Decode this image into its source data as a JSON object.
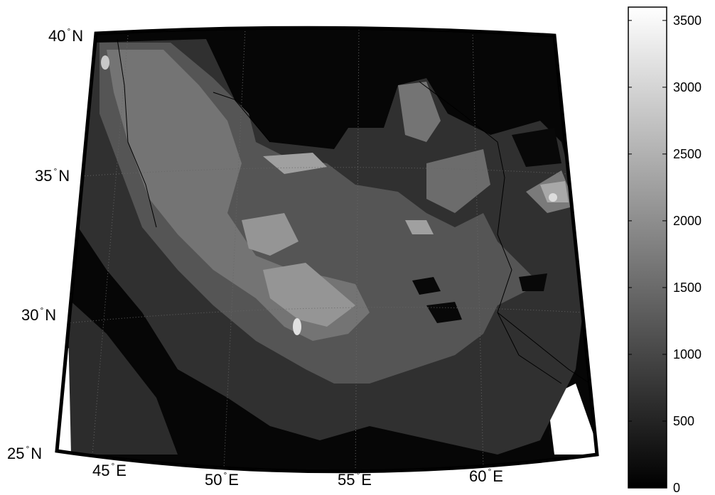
{
  "map": {
    "lat_labels": [
      {
        "num": "40",
        "hemi": "N"
      },
      {
        "num": "35",
        "hemi": "N"
      },
      {
        "num": "30",
        "hemi": "N"
      },
      {
        "num": "25",
        "hemi": "N"
      }
    ],
    "lon_labels": [
      {
        "num": "45",
        "hemi": "E"
      },
      {
        "num": "50",
        "hemi": "E"
      },
      {
        "num": "55",
        "hemi": "E"
      },
      {
        "num": "60",
        "hemi": "E"
      }
    ],
    "degree_symbol": "°"
  },
  "colorbar": {
    "ticks": [
      "3500",
      "3000",
      "2500",
      "2000",
      "1500",
      "1000",
      "500",
      "0"
    ],
    "min": 0,
    "max": 3600,
    "colors": {
      "low": "#000000",
      "high": "#ffffff"
    }
  }
}
